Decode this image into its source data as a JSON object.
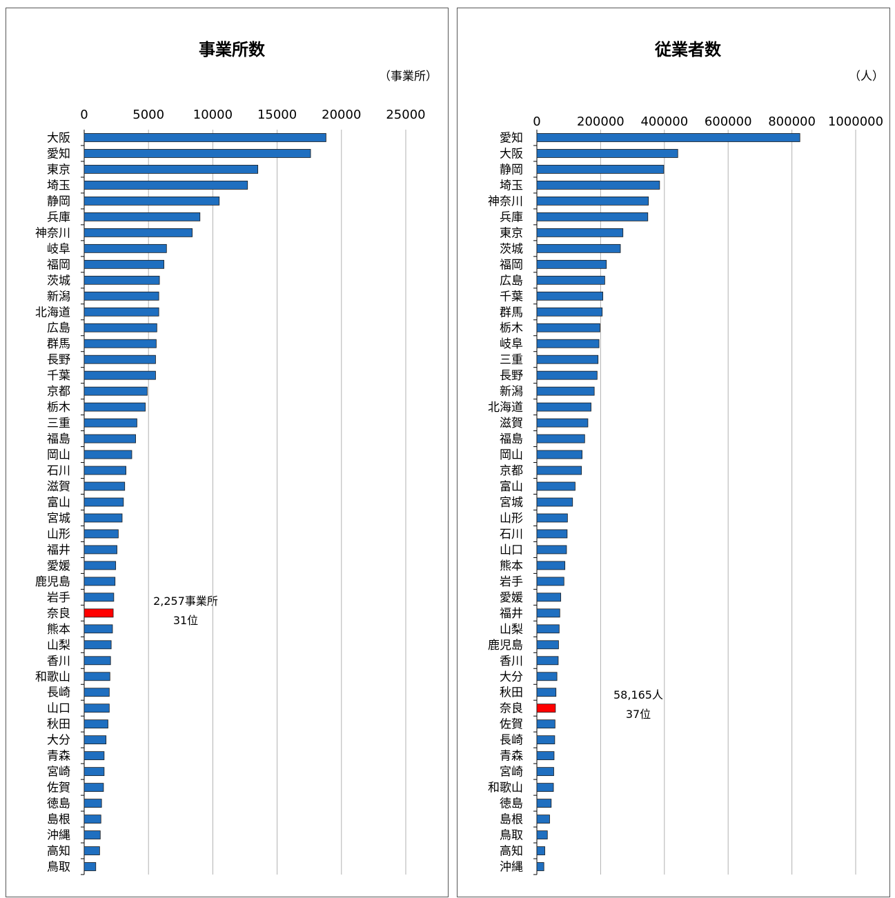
{
  "chart_data": [
    {
      "type": "bar",
      "orientation": "horizontal",
      "title": "事業所数",
      "unit": "（事業所）",
      "xlim": [
        0,
        25000
      ],
      "ticks": [
        "0",
        "5000",
        "10000",
        "15000",
        "20000",
        "25000"
      ],
      "grid": true,
      "highlight_color": "#ff0000",
      "bar_color": "#1f6fc0",
      "annotation": [
        "2,257事業所",
        "31位"
      ],
      "categories": [
        "大阪",
        "愛知",
        "東京",
        "埼玉",
        "静岡",
        "兵庫",
        "神奈川",
        "岐阜",
        "福岡",
        "茨城",
        "新潟",
        "北海道",
        "広島",
        "群馬",
        "長野",
        "千葉",
        "京都",
        "栃木",
        "三重",
        "福島",
        "岡山",
        "石川",
        "滋賀",
        "富山",
        "宮城",
        "山形",
        "福井",
        "愛媛",
        "鹿児島",
        "岩手",
        "奈良",
        "熊本",
        "山梨",
        "香川",
        "和歌山",
        "長崎",
        "山口",
        "秋田",
        "大分",
        "青森",
        "宮崎",
        "佐賀",
        "徳島",
        "島根",
        "沖縄",
        "高知",
        "鳥取"
      ],
      "values": [
        18800,
        17600,
        13500,
        12700,
        10500,
        9000,
        8400,
        6400,
        6200,
        5850,
        5800,
        5800,
        5650,
        5600,
        5550,
        5550,
        4900,
        4750,
        4100,
        4000,
        3700,
        3250,
        3150,
        3050,
        2950,
        2650,
        2550,
        2450,
        2400,
        2300,
        2257,
        2200,
        2100,
        2050,
        2000,
        1950,
        1950,
        1850,
        1700,
        1550,
        1550,
        1500,
        1350,
        1300,
        1250,
        1200,
        900
      ],
      "highlight_index": 30
    },
    {
      "type": "bar",
      "orientation": "horizontal",
      "title": "従業者数",
      "unit": "（人）",
      "xlim": [
        0,
        1000000
      ],
      "ticks": [
        "0",
        "200000",
        "400000",
        "600000",
        "800000",
        "1000000"
      ],
      "grid": true,
      "highlight_color": "#ff0000",
      "bar_color": "#1f6fc0",
      "annotation": [
        "58,165人",
        "37位"
      ],
      "categories": [
        "愛知",
        "大阪",
        "静岡",
        "埼玉",
        "神奈川",
        "兵庫",
        "東京",
        "茨城",
        "福岡",
        "広島",
        "千葉",
        "群馬",
        "栃木",
        "岐阜",
        "三重",
        "長野",
        "新潟",
        "北海道",
        "滋賀",
        "福島",
        "岡山",
        "京都",
        "富山",
        "宮城",
        "山形",
        "石川",
        "山口",
        "熊本",
        "岩手",
        "愛媛",
        "福井",
        "山梨",
        "鹿児島",
        "香川",
        "大分",
        "秋田",
        "奈良",
        "佐賀",
        "長崎",
        "青森",
        "宮崎",
        "和歌山",
        "徳島",
        "島根",
        "鳥取",
        "高知",
        "沖縄"
      ],
      "values": [
        825000,
        442000,
        398000,
        385000,
        350000,
        348000,
        270000,
        262000,
        218000,
        213000,
        207000,
        205000,
        198000,
        195000,
        192000,
        189000,
        180000,
        170000,
        160000,
        150000,
        142000,
        140000,
        120000,
        112000,
        96000,
        95000,
        93000,
        88000,
        85000,
        75000,
        72000,
        70000,
        68000,
        67000,
        63000,
        60000,
        58165,
        57000,
        56000,
        54000,
        53000,
        52000,
        45000,
        40000,
        33000,
        25000,
        22000
      ],
      "highlight_index": 36
    }
  ]
}
